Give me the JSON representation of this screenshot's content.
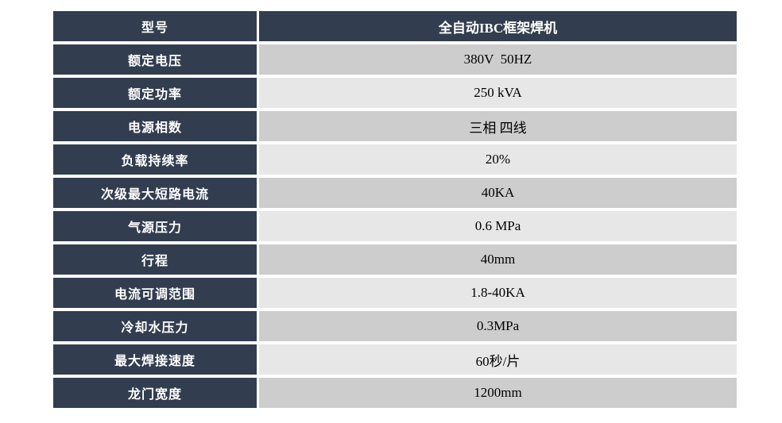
{
  "table": {
    "header": {
      "label": "型号",
      "value": "全自动IBC框架焊机"
    },
    "rows": [
      {
        "label": "额定电压",
        "value": "380V  50HZ"
      },
      {
        "label": "额定功率",
        "value": "250 kVA"
      },
      {
        "label": "电源相数",
        "value": "三相 四线"
      },
      {
        "label": "负载持续率",
        "value": "20%"
      },
      {
        "label": "次级最大短路电流",
        "value": "40KA"
      },
      {
        "label": "气源压力",
        "value": "0.6 MPa"
      },
      {
        "label": "行程",
        "value": "40mm"
      },
      {
        "label": "电流可调范围",
        "value": "1.8-40KA"
      },
      {
        "label": "冷却水压力",
        "value": "0.3MPa"
      },
      {
        "label": "最大焊接速度",
        "value": "60秒/片"
      },
      {
        "label": "龙门宽度",
        "value": "1200mm"
      }
    ],
    "colors": {
      "header_bg": "#323E4F",
      "band_dark": "#CDCDCD",
      "band_light": "#E7E7E7"
    }
  }
}
